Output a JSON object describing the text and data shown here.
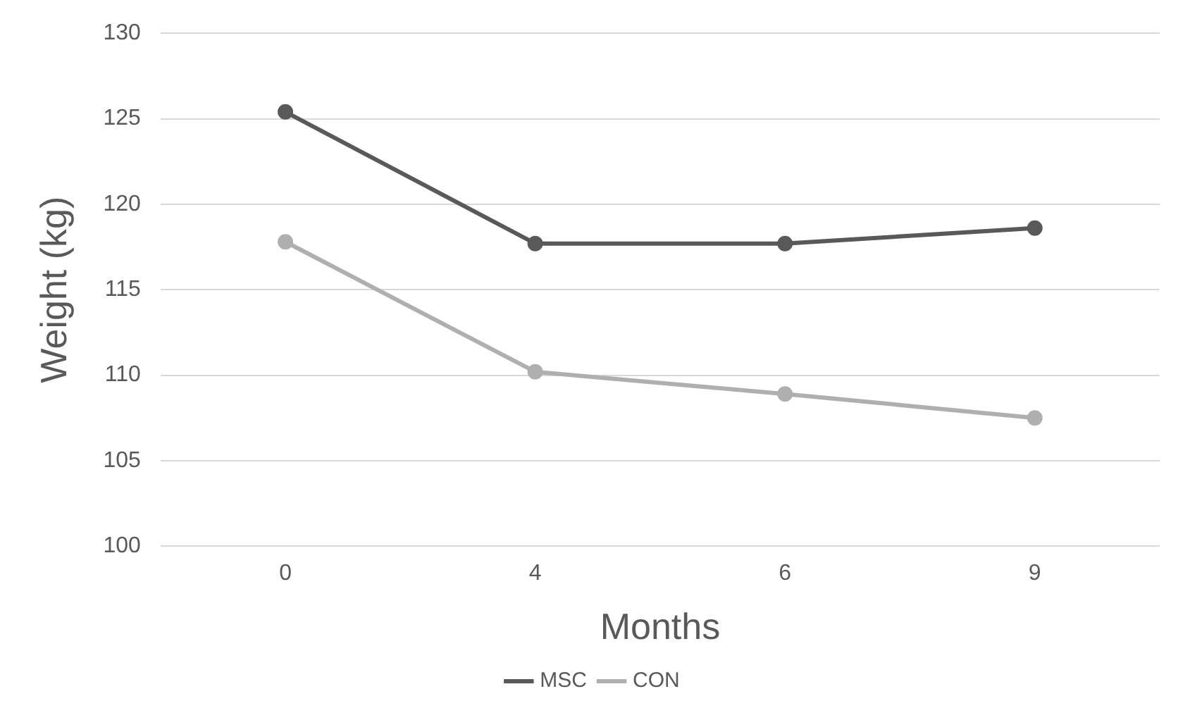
{
  "chart_data": {
    "type": "line",
    "xlabel": "Months",
    "ylabel": "Weight (kg)",
    "categories": [
      "0",
      "4",
      "6",
      "9"
    ],
    "series": [
      {
        "name": "MSC",
        "color": "#595959",
        "values": [
          125.4,
          117.7,
          117.7,
          118.6
        ]
      },
      {
        "name": "CON",
        "color": "#afafaf",
        "values": [
          117.8,
          110.2,
          108.9,
          107.5
        ]
      }
    ],
    "ylim": [
      100,
      130
    ],
    "yticks": [
      100,
      105,
      110,
      115,
      120,
      125,
      130
    ],
    "grid": "y",
    "legend": "bottom",
    "marker": "circle",
    "line_style": "solid"
  }
}
